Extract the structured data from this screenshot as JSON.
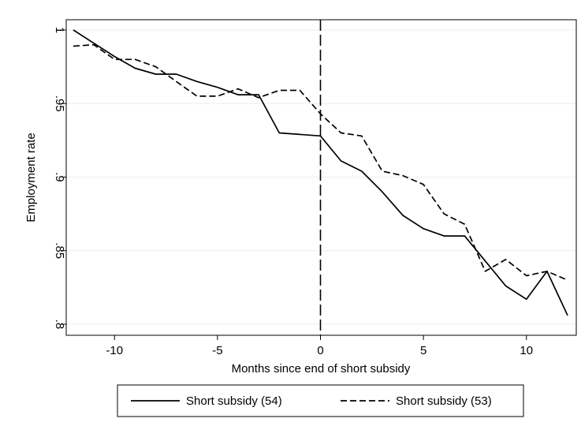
{
  "chart_data": {
    "type": "line",
    "xlabel": "Months since end of short subsidy",
    "ylabel": "Employment rate",
    "xlim": [
      -12,
      12
    ],
    "ylim": [
      0.8,
      1.0
    ],
    "xticks": [
      -10,
      -5,
      0,
      5,
      10
    ],
    "xtick_labels": [
      "-10",
      "-5",
      "0",
      "5",
      "10"
    ],
    "yticks": [
      0.8,
      0.85,
      0.9,
      0.95,
      1.0
    ],
    "ytick_labels": [
      ".8",
      ".85",
      ".9",
      ".95",
      "1"
    ],
    "grid": "horizontal",
    "vline": 0,
    "legend_position": "bottom",
    "x": [
      -12,
      -11,
      -10,
      -9,
      -8,
      -7,
      -6,
      -5,
      -4,
      -3,
      -2,
      -1,
      0,
      1,
      2,
      3,
      4,
      5,
      6,
      7,
      8,
      9,
      10,
      11,
      12
    ],
    "series": [
      {
        "name": "Short subsidy (54)",
        "style": "solid",
        "color": "#000000",
        "values": [
          1.0,
          0.991,
          0.982,
          0.974,
          0.97,
          0.97,
          0.965,
          0.961,
          0.956,
          0.956,
          0.93,
          0.929,
          0.928,
          0.911,
          0.904,
          0.89,
          0.874,
          0.865,
          0.86,
          0.86,
          0.843,
          0.826,
          0.817,
          0.836,
          0.806
        ]
      },
      {
        "name": "Short subsidy (53)",
        "style": "dashed",
        "color": "#000000",
        "values": [
          0.989,
          0.99,
          0.98,
          0.98,
          0.975,
          0.965,
          0.955,
          0.955,
          0.96,
          0.954,
          0.959,
          0.959,
          0.943,
          0.93,
          0.928,
          0.904,
          0.901,
          0.895,
          0.875,
          0.868,
          0.836,
          0.844,
          0.833,
          0.836,
          0.83
        ]
      }
    ]
  }
}
